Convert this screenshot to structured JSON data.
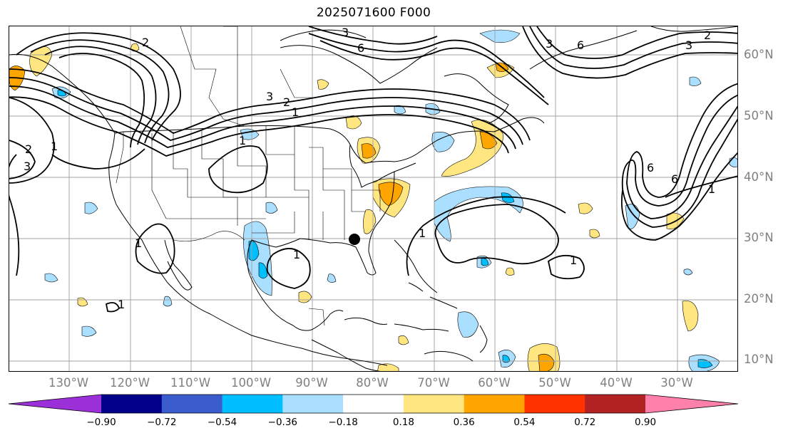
{
  "title": "2025071600 F000",
  "lat_labels": [
    "60°N",
    "50°N",
    "40°N",
    "30°N",
    "20°N",
    "10°N"
  ],
  "lon_labels": [
    "130°W",
    "120°W",
    "110°W",
    "100°W",
    "90°W",
    "80°W",
    "70°W",
    "60°W",
    "50°W",
    "40°W",
    "30°W"
  ],
  "colorbar": {
    "ticks": [
      "−0.90",
      "−0.72",
      "−0.54",
      "−0.36",
      "−0.18",
      "0.18",
      "0.36",
      "0.54",
      "0.72",
      "0.90"
    ],
    "colors": [
      "#9b30d9",
      "#00008b",
      "#3a5ccc",
      "#00bfff",
      "#aadfff",
      "#ffffff",
      "#ffe680",
      "#ffa500",
      "#ff3300",
      "#b22222",
      "#ff80aa"
    ]
  },
  "contour_labels": [
    "1",
    "2",
    "3",
    "6"
  ],
  "marker": "location-dot"
}
